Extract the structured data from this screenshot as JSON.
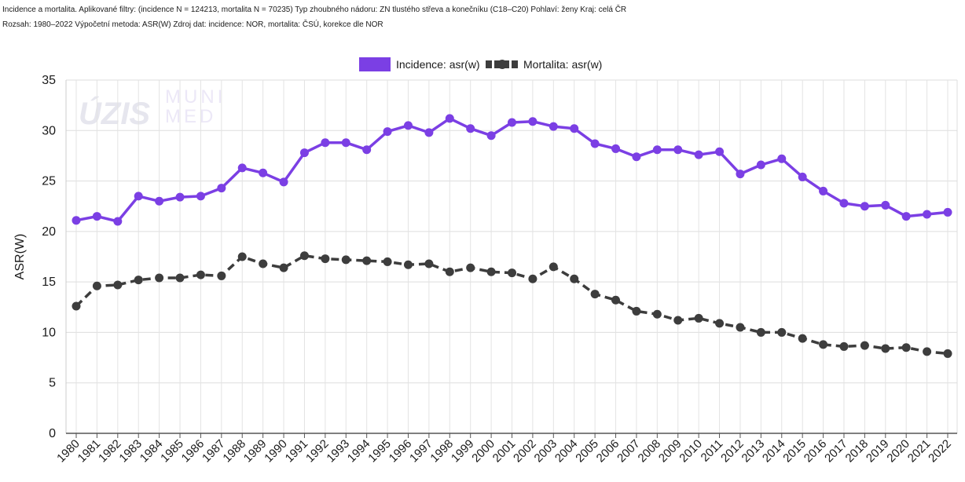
{
  "header": {
    "line1": "Incidence a mortalita. Aplikované filtry: (incidence N = 124213, mortalita N = 70235) Typ zhoubného nádoru: ZN tlustého střeva a konečníku (C18–C20) Pohlaví: ženy Kraj: celá ČR",
    "line2": "Rozsah: 1980–2022 Výpočetní metoda: ASR(W) Zdroj dat: incidence: NOR, mortalita: ČSÚ, korekce dle NOR"
  },
  "watermark": {
    "uzis": "ÚZIS",
    "muni": "MUNI",
    "med": "MED"
  },
  "chart_data": {
    "type": "line",
    "xlabel": "",
    "ylabel": "ASR(W)",
    "ylim": [
      0,
      35
    ],
    "yticks": [
      0,
      5,
      10,
      15,
      20,
      25,
      30,
      35
    ],
    "grid": true,
    "legend_position": "top-center",
    "x": [
      1980,
      1981,
      1982,
      1983,
      1984,
      1985,
      1986,
      1987,
      1988,
      1989,
      1990,
      1991,
      1992,
      1993,
      1994,
      1995,
      1996,
      1997,
      1998,
      1999,
      2000,
      2001,
      2002,
      2003,
      2004,
      2005,
      2006,
      2007,
      2008,
      2009,
      2010,
      2011,
      2012,
      2013,
      2014,
      2015,
      2016,
      2017,
      2018,
      2019,
      2020,
      2021,
      2022
    ],
    "series": [
      {
        "name": "Incidence: asr(w)",
        "color": "#7b3fe4",
        "style": "solid",
        "values": [
          21.1,
          21.5,
          21.0,
          23.5,
          23.0,
          23.4,
          23.5,
          24.3,
          26.3,
          25.8,
          24.9,
          27.8,
          28.8,
          28.8,
          28.1,
          29.9,
          30.5,
          29.8,
          31.2,
          30.2,
          29.5,
          30.8,
          30.9,
          30.4,
          30.2,
          28.7,
          28.2,
          27.4,
          28.1,
          28.1,
          27.6,
          27.9,
          25.7,
          26.6,
          27.2,
          25.4,
          24.0,
          22.8,
          22.5,
          22.6,
          21.5,
          21.7,
          21.9
        ]
      },
      {
        "name": "Mortalita: asr(w)",
        "color": "#3d3d3d",
        "style": "dashed",
        "values": [
          12.6,
          14.6,
          14.7,
          15.2,
          15.4,
          15.4,
          15.7,
          15.6,
          17.5,
          16.8,
          16.4,
          17.6,
          17.3,
          17.2,
          17.1,
          17.0,
          16.7,
          16.8,
          16.0,
          16.4,
          16.0,
          15.9,
          15.3,
          16.5,
          15.3,
          13.8,
          13.2,
          12.1,
          11.8,
          11.2,
          11.4,
          10.9,
          10.5,
          10.0,
          10.0,
          9.4,
          8.8,
          8.6,
          8.7,
          8.4,
          8.5,
          8.1,
          7.9
        ]
      }
    ]
  }
}
